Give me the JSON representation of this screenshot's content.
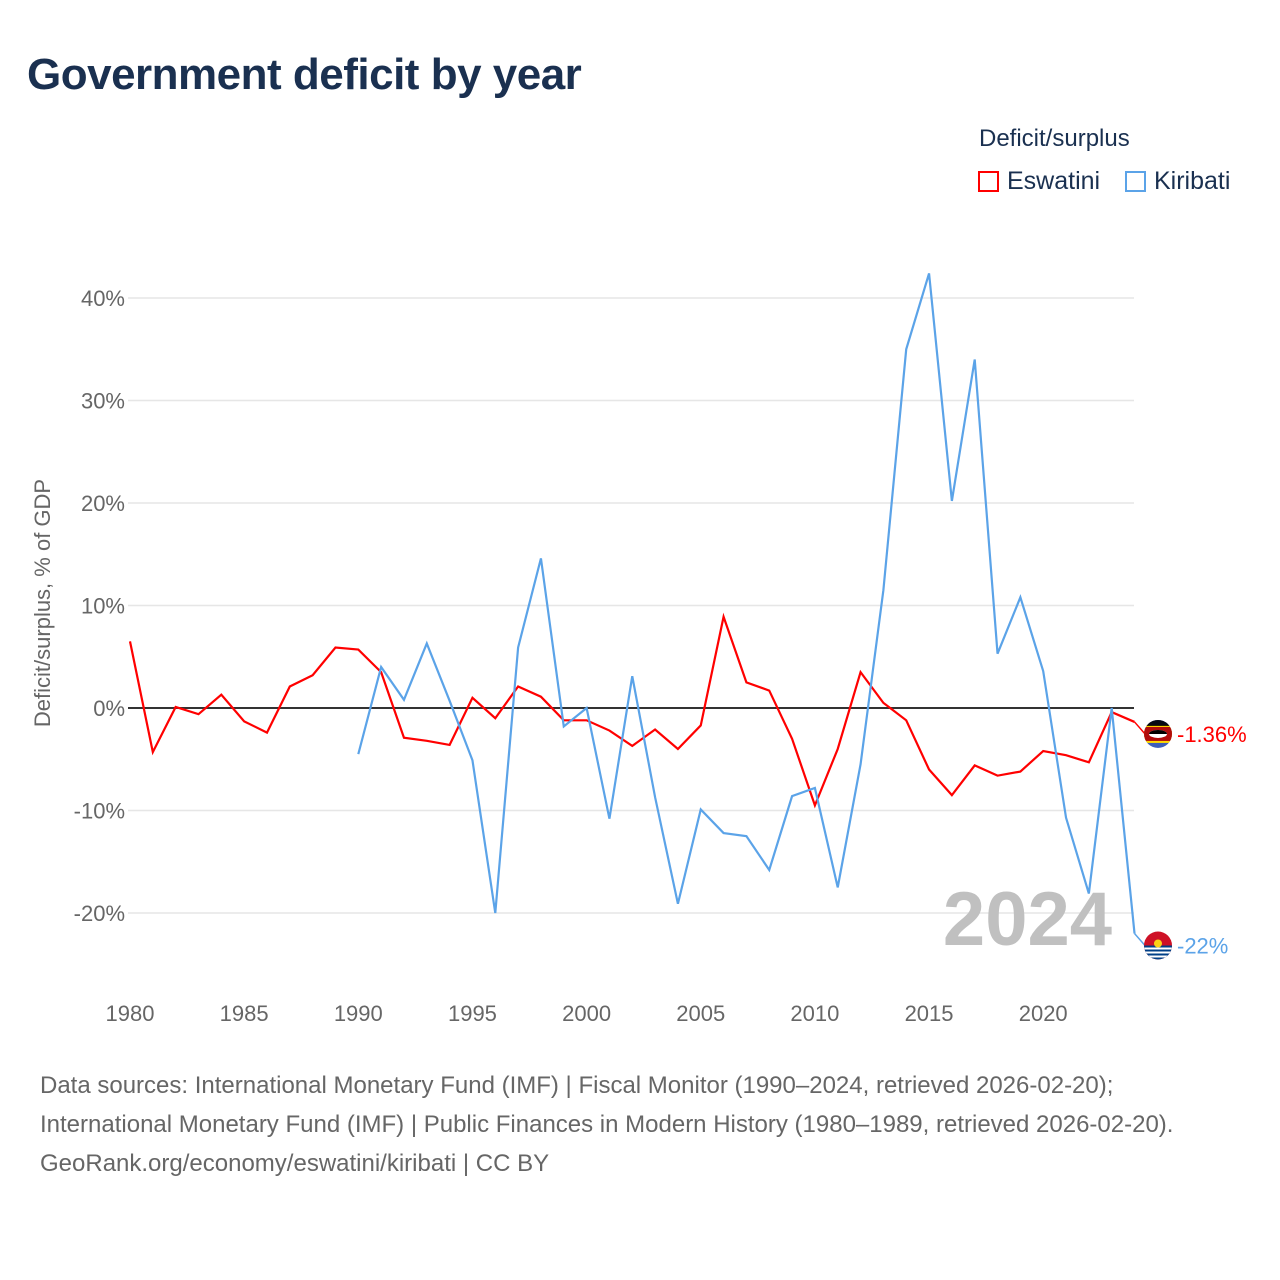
{
  "title": "Government deficit by year",
  "legend": {
    "title": "Deficit/surplus",
    "items": [
      {
        "label": "Eswatini",
        "color": "#ff0000"
      },
      {
        "label": "Kiribati",
        "color": "#5ba3e8"
      }
    ]
  },
  "chart_data": {
    "type": "line",
    "title": "Government deficit by year",
    "xlabel": "",
    "ylabel": "Deficit/surplus, % of GDP",
    "xlim": [
      1980,
      2024
    ],
    "ylim": [
      -25,
      45
    ],
    "x_ticks": [
      1980,
      1985,
      1990,
      1995,
      2000,
      2005,
      2010,
      2015,
      2020
    ],
    "y_ticks": [
      -20,
      -10,
      0,
      10,
      20,
      30,
      40
    ],
    "y_tick_labels": [
      "-20%",
      "-10%",
      "0%",
      "10%",
      "20%",
      "30%",
      "40%"
    ],
    "grid": true,
    "legend_position": "top-right",
    "year_watermark": "2024",
    "series": [
      {
        "name": "Eswatini",
        "color": "#ff0000",
        "end_label": "-1.36%",
        "x": [
          1980,
          1981,
          1982,
          1983,
          1984,
          1985,
          1986,
          1987,
          1988,
          1989,
          1990,
          1991,
          1992,
          1993,
          1994,
          1995,
          1996,
          1997,
          1998,
          1999,
          2000,
          2001,
          2002,
          2003,
          2004,
          2005,
          2006,
          2007,
          2008,
          2009,
          2010,
          2011,
          2012,
          2013,
          2014,
          2015,
          2016,
          2017,
          2018,
          2019,
          2020,
          2021,
          2022,
          2023,
          2024
        ],
        "values": [
          6.5,
          -4.3,
          0.1,
          -0.6,
          1.3,
          -1.3,
          -2.4,
          2.1,
          3.2,
          5.9,
          5.7,
          3.5,
          -2.9,
          -3.2,
          -3.6,
          1.0,
          -1.0,
          2.1,
          1.1,
          -1.2,
          -1.2,
          -2.2,
          -3.7,
          -2.1,
          -4.0,
          -1.7,
          8.9,
          2.5,
          1.7,
          -3.0,
          -9.5,
          -4.0,
          3.5,
          0.5,
          -1.2,
          -6.0,
          -8.5,
          -5.6,
          -6.6,
          -6.2,
          -4.2,
          -4.6,
          -5.3,
          -0.4,
          -1.36
        ]
      },
      {
        "name": "Kiribati",
        "color": "#5ba3e8",
        "end_label": "-22%",
        "x": [
          1990,
          1991,
          1992,
          1993,
          1994,
          1995,
          1996,
          1997,
          1998,
          1999,
          2000,
          2001,
          2002,
          2003,
          2004,
          2005,
          2006,
          2007,
          2008,
          2009,
          2010,
          2011,
          2012,
          2013,
          2014,
          2015,
          2016,
          2017,
          2018,
          2019,
          2020,
          2021,
          2022,
          2023,
          2024
        ],
        "values": [
          -4.5,
          4.0,
          0.8,
          6.3,
          0.7,
          -5.1,
          -20.0,
          5.9,
          14.6,
          -1.8,
          0.0,
          -10.8,
          3.1,
          -8.7,
          -19.1,
          -9.9,
          -12.2,
          -12.5,
          -15.8,
          -8.6,
          -7.8,
          -17.5,
          -5.5,
          11.5,
          35.0,
          42.4,
          20.2,
          34.0,
          5.3,
          10.8,
          3.6,
          -10.7,
          -18.1,
          0.0,
          -22.0
        ]
      }
    ]
  },
  "footer": {
    "sources": "Data sources: International Monetary Fund (IMF) | Fiscal Monitor (1990–2024, retrieved 2026-02-20); International Monetary Fund (IMF) | Public Finances in Modern History (1980–1989, retrieved 2026-02-20).",
    "credit": "GeoRank.org/economy/eswatini/kiribati | CC BY"
  }
}
